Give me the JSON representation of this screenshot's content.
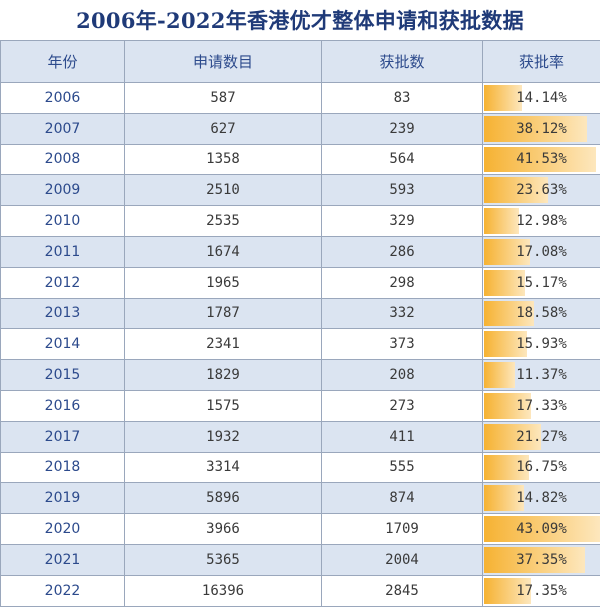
{
  "title": "2006年-2022年香港优才整体申请和获批数据",
  "chart_data": {
    "type": "table",
    "columns": [
      "年份",
      "申请数目",
      "获批数",
      "获批率"
    ],
    "rows": [
      {
        "year": "2006",
        "applications": "587",
        "approved": "83",
        "rate": "14.14%",
        "rate_value": 14.14
      },
      {
        "year": "2007",
        "applications": "627",
        "approved": "239",
        "rate": "38.12%",
        "rate_value": 38.12
      },
      {
        "year": "2008",
        "applications": "1358",
        "approved": "564",
        "rate": "41.53%",
        "rate_value": 41.53
      },
      {
        "year": "2009",
        "applications": "2510",
        "approved": "593",
        "rate": "23.63%",
        "rate_value": 23.63
      },
      {
        "year": "2010",
        "applications": "2535",
        "approved": "329",
        "rate": "12.98%",
        "rate_value": 12.98
      },
      {
        "year": "2011",
        "applications": "1674",
        "approved": "286",
        "rate": "17.08%",
        "rate_value": 17.08
      },
      {
        "year": "2012",
        "applications": "1965",
        "approved": "298",
        "rate": "15.17%",
        "rate_value": 15.17
      },
      {
        "year": "2013",
        "applications": "1787",
        "approved": "332",
        "rate": "18.58%",
        "rate_value": 18.58
      },
      {
        "year": "2014",
        "applications": "2341",
        "approved": "373",
        "rate": "15.93%",
        "rate_value": 15.93
      },
      {
        "year": "2015",
        "applications": "1829",
        "approved": "208",
        "rate": "11.37%",
        "rate_value": 11.37
      },
      {
        "year": "2016",
        "applications": "1575",
        "approved": "273",
        "rate": "17.33%",
        "rate_value": 17.33
      },
      {
        "year": "2017",
        "applications": "1932",
        "approved": "411",
        "rate": "21.27%",
        "rate_value": 21.27
      },
      {
        "year": "2018",
        "applications": "3314",
        "approved": "555",
        "rate": "16.75%",
        "rate_value": 16.75
      },
      {
        "year": "2019",
        "applications": "5896",
        "approved": "874",
        "rate": "14.82%",
        "rate_value": 14.82
      },
      {
        "year": "2020",
        "applications": "3966",
        "approved": "1709",
        "rate": "43.09%",
        "rate_value": 43.09
      },
      {
        "year": "2021",
        "applications": "5365",
        "approved": "2004",
        "rate": "37.35%",
        "rate_value": 37.35
      },
      {
        "year": "2022",
        "applications": "16396",
        "approved": "2845",
        "rate": "17.35%",
        "rate_value": 17.35
      }
    ],
    "rate_bar_max": 43.09,
    "colors": {
      "header_bg": "#dbe4f1",
      "bar": "#f6b232",
      "title": "#1f3a78"
    }
  }
}
